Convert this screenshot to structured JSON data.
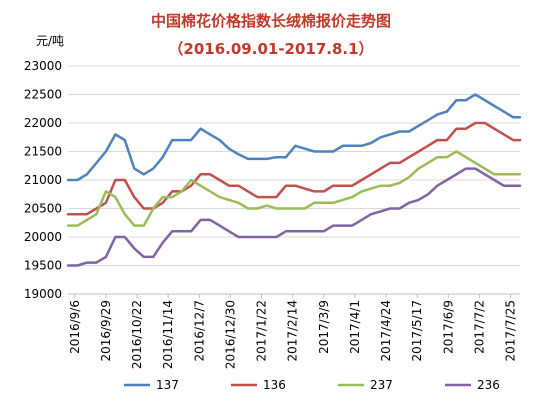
{
  "chart_data": {
    "type": "line",
    "title": "中国棉花价格指数长绒棉报价走势图",
    "subtitle": "（2016.09.01-2017.8.1）",
    "ylabel": "元/吨",
    "xlabel": "",
    "ylim": [
      19000,
      23000
    ],
    "yticks": [
      "23000",
      "22500",
      "22000",
      "21500",
      "21000",
      "20500",
      "20000",
      "19500",
      "19000"
    ],
    "x_dates": [
      "2016-09-01",
      "2016-09-08",
      "2016-09-15",
      "2016-09-22",
      "2016-09-29",
      "2016-10-06",
      "2016-10-13",
      "2016-10-20",
      "2016-10-27",
      "2016-11-03",
      "2016-11-10",
      "2016-11-17",
      "2016-11-24",
      "2016-12-01",
      "2016-12-08",
      "2016-12-15",
      "2016-12-22",
      "2016-12-29",
      "2017-01-05",
      "2017-01-12",
      "2017-01-19",
      "2017-01-26",
      "2017-02-02",
      "2017-02-09",
      "2017-02-16",
      "2017-02-23",
      "2017-03-02",
      "2017-03-09",
      "2017-03-16",
      "2017-03-23",
      "2017-03-30",
      "2017-04-06",
      "2017-04-13",
      "2017-04-20",
      "2017-04-27",
      "2017-05-04",
      "2017-05-11",
      "2017-05-18",
      "2017-05-25",
      "2017-06-01",
      "2017-06-08",
      "2017-06-15",
      "2017-06-22",
      "2017-06-29",
      "2017-07-06",
      "2017-07-13",
      "2017-07-20",
      "2017-07-27",
      "2017-08-01"
    ],
    "x_tick_labels": [
      "2016/9/6",
      "2016/9/29",
      "2016/10/22",
      "2016/11/14",
      "2016/12/7",
      "2016/12/30",
      "2017/1/22",
      "2017/2/14",
      "2017/3/9",
      "2017/4/1",
      "2017/4/24",
      "2017/5/17",
      "2017/6/9",
      "2017/7/2",
      "2017/7/25"
    ],
    "series": [
      {
        "name": "137",
        "color": "#4f81bd",
        "values": [
          21000,
          21000,
          21100,
          21300,
          21500,
          21800,
          21700,
          21200,
          21100,
          21200,
          21400,
          21700,
          21700,
          21700,
          21900,
          21800,
          21700,
          21550,
          21450,
          21370,
          21370,
          21370,
          21400,
          21400,
          21600,
          21550,
          21500,
          21500,
          21500,
          21600,
          21600,
          21600,
          21650,
          21750,
          21800,
          21850,
          21850,
          21950,
          22050,
          22150,
          22200,
          22400,
          22400,
          22500,
          22400,
          22300,
          22200,
          22100,
          22100
        ]
      },
      {
        "name": "136",
        "color": "#c0504d",
        "values": [
          20400,
          20400,
          20400,
          20500,
          20600,
          21000,
          21000,
          20700,
          20500,
          20500,
          20600,
          20800,
          20800,
          20900,
          21100,
          21100,
          21000,
          20900,
          20900,
          20800,
          20700,
          20700,
          20700,
          20900,
          20900,
          20850,
          20800,
          20800,
          20900,
          20900,
          20900,
          21000,
          21100,
          21200,
          21300,
          21300,
          21400,
          21500,
          21600,
          21700,
          21700,
          21900,
          21900,
          22000,
          22000,
          21900,
          21800,
          21700,
          21700
        ]
      },
      {
        "name": "237",
        "color": "#9bbb59",
        "values": [
          20200,
          20200,
          20300,
          20400,
          20800,
          20700,
          20400,
          20200,
          20200,
          20500,
          20700,
          20700,
          20800,
          21000,
          20900,
          20800,
          20700,
          20650,
          20600,
          20500,
          20500,
          20550,
          20500,
          20500,
          20500,
          20500,
          20600,
          20600,
          20600,
          20650,
          20700,
          20800,
          20850,
          20900,
          20900,
          20950,
          21050,
          21200,
          21300,
          21400,
          21400,
          21500,
          21400,
          21300,
          21200,
          21100,
          21100,
          21100,
          21100
        ]
      },
      {
        "name": "236",
        "color": "#8064a2",
        "values": [
          19500,
          19500,
          19550,
          19550,
          19650,
          20000,
          20000,
          19800,
          19650,
          19650,
          19900,
          20100,
          20100,
          20100,
          20300,
          20300,
          20200,
          20100,
          20000,
          20000,
          20000,
          20000,
          20000,
          20100,
          20100,
          20100,
          20100,
          20100,
          20200,
          20200,
          20200,
          20300,
          20400,
          20450,
          20500,
          20500,
          20600,
          20650,
          20750,
          20900,
          21000,
          21100,
          21200,
          21200,
          21100,
          21000,
          20900,
          20900,
          20900
        ]
      }
    ],
    "grid": true,
    "legend": "bottom"
  }
}
